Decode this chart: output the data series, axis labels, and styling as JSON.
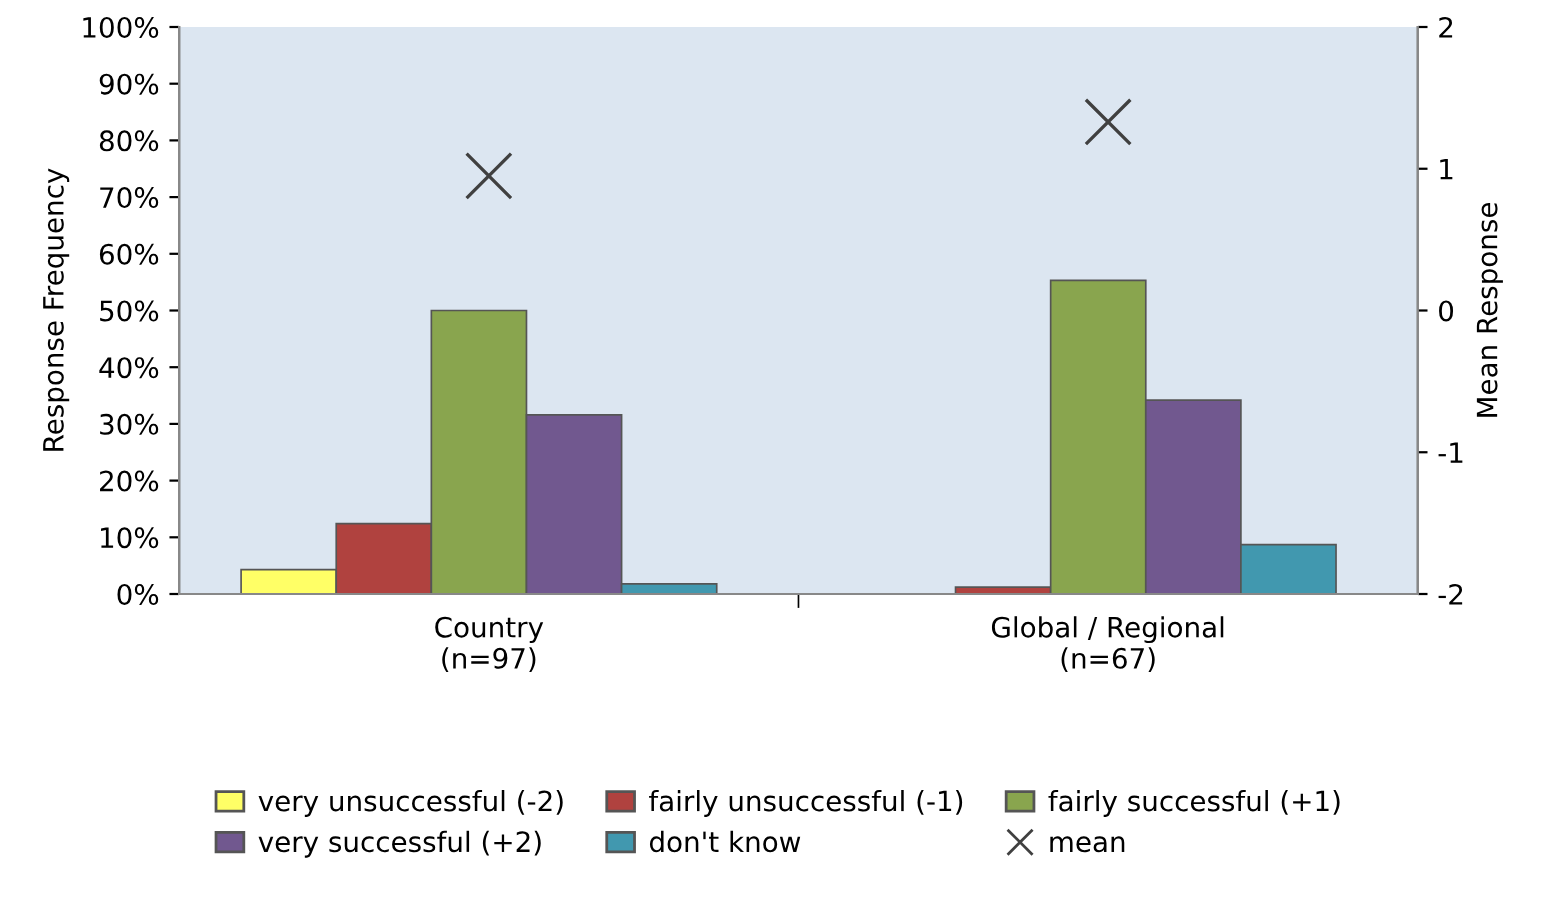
{
  "chart_data": {
    "type": "bar",
    "categories": [
      "Country\n(n=97)",
      "Global / Regional\n(n=67)"
    ],
    "ylabel": "Response Frequency",
    "y2label": "Mean Response",
    "ylim": [
      0,
      100
    ],
    "yticks": [
      {
        "value": 0,
        "label": "0%"
      },
      {
        "value": 10,
        "label": "10%"
      },
      {
        "value": 20,
        "label": "20%"
      },
      {
        "value": 30,
        "label": "30%"
      },
      {
        "value": 40,
        "label": "40%"
      },
      {
        "value": 50,
        "label": "50%"
      },
      {
        "value": 60,
        "label": "60%"
      },
      {
        "value": 70,
        "label": "70%"
      },
      {
        "value": 80,
        "label": "80%"
      },
      {
        "value": 90,
        "label": "90%"
      },
      {
        "value": 100,
        "label": "100%"
      }
    ],
    "y2lim": [
      -2,
      2
    ],
    "y2ticks": [
      {
        "value": -2,
        "label": "-2"
      },
      {
        "value": -1,
        "label": "-1"
      },
      0,
      1,
      2
    ],
    "series": [
      {
        "name": "very unsuccessful (-2)",
        "color": "#ffff66",
        "values": [
          4.3,
          null
        ]
      },
      {
        "name": "fairly unsuccessful (-1)",
        "color": "#b0423f",
        "values": [
          12.4,
          1.2
        ]
      },
      {
        "name": "fairly successful (+1)",
        "color": "#89a54e",
        "values": [
          50,
          55.3
        ]
      },
      {
        "name": "very successful (+2)",
        "color": "#71588f",
        "values": [
          31.6,
          34.2
        ]
      },
      {
        "name": "don't know",
        "color": "#4198af",
        "values": [
          1.8,
          8.7
        ]
      },
      {
        "name": "mean",
        "type": "scatter",
        "axis": "y2",
        "marker": "cross",
        "color": "#404040",
        "values": [
          0.95,
          1.33
        ]
      }
    ],
    "grid": false,
    "legend": "bottom"
  }
}
